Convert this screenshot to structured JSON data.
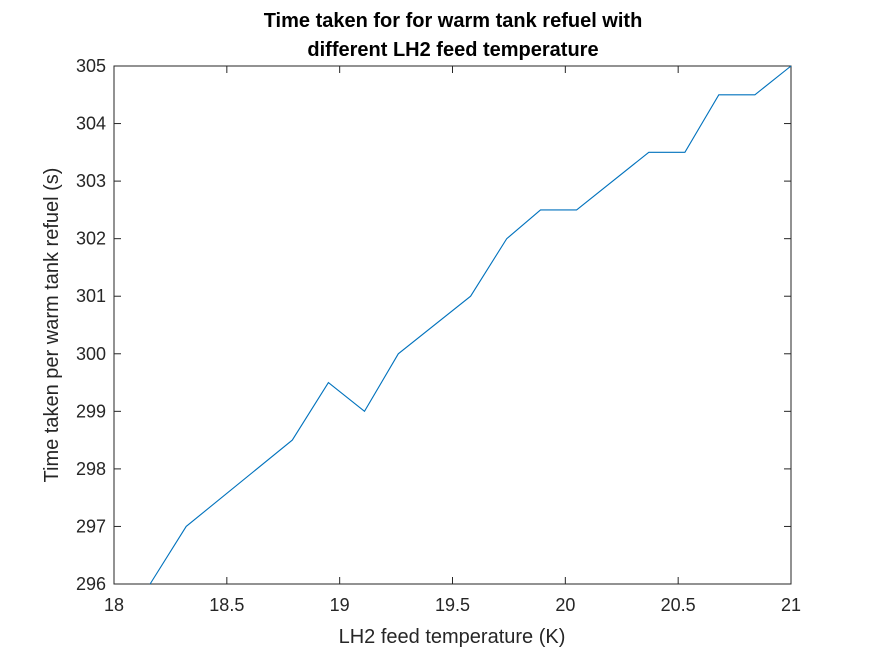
{
  "chart_data": {
    "type": "line",
    "title_lines": [
      "Time taken for for warm tank refuel with",
      "different LH2 feed temperature"
    ],
    "xlabel": "LH2 feed temperature (K)",
    "ylabel": "Time taken per warm tank refuel (s)",
    "xlim": [
      18,
      21
    ],
    "ylim": [
      296,
      305
    ],
    "xticks": [
      18,
      18.5,
      19,
      19.5,
      20,
      20.5,
      21
    ],
    "xtick_labels": [
      "18",
      "18.5",
      "19",
      "19.5",
      "20",
      "20.5",
      "21"
    ],
    "yticks": [
      296,
      297,
      298,
      299,
      300,
      301,
      302,
      303,
      304,
      305
    ],
    "ytick_labels": [
      "296",
      "297",
      "298",
      "299",
      "300",
      "301",
      "302",
      "303",
      "304",
      "305"
    ],
    "grid": false,
    "series": [
      {
        "name": "refuel time",
        "color": "#0072BD",
        "x": [
          18.16,
          18.32,
          18.79,
          18.95,
          19.11,
          19.26,
          19.58,
          19.74,
          19.89,
          20.05,
          20.37,
          20.53,
          20.68,
          20.84,
          21.0
        ],
        "y": [
          296,
          297,
          298.5,
          299.5,
          299,
          300,
          301,
          302,
          302.5,
          302.5,
          303.5,
          303.5,
          304.5,
          304.5,
          305
        ]
      }
    ]
  }
}
